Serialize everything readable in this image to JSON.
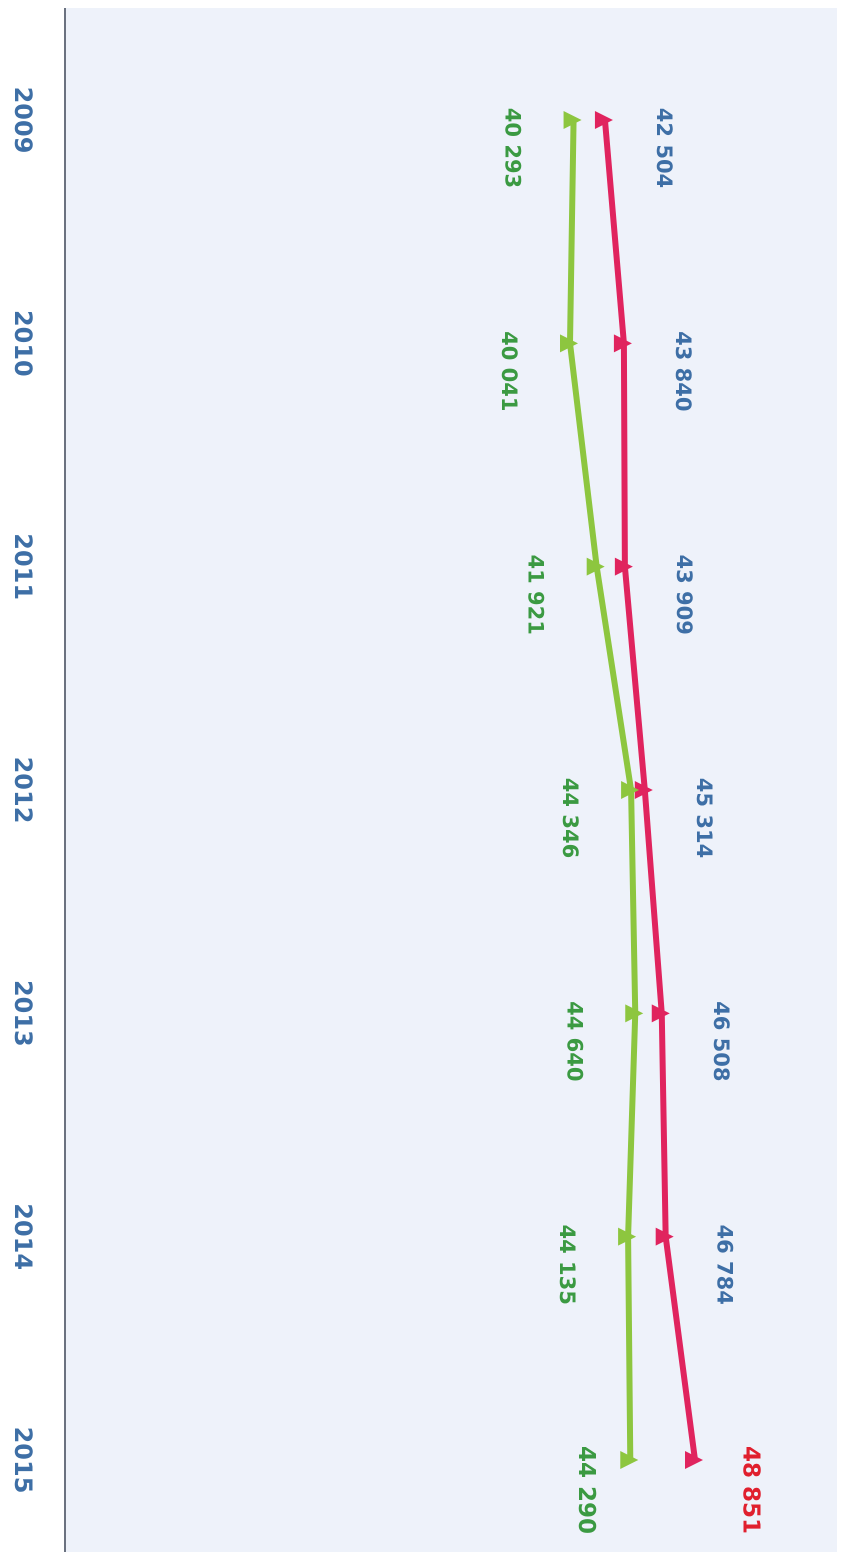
{
  "chart_data": {
    "type": "line",
    "categories": [
      "2009",
      "2010",
      "2011",
      "2012",
      "2013",
      "2014",
      "2015"
    ],
    "series": [
      {
        "color": "#e0245e",
        "values": [
          42504,
          43840,
          43909,
          45314,
          46508,
          46784,
          48851
        ],
        "value_labels": [
          "42 504",
          "43 840",
          "43 909",
          "45 314",
          "46 508",
          "46 784",
          "48 851"
        ]
      },
      {
        "color": "#8dc63f",
        "values": [
          40293,
          40041,
          41921,
          44346,
          44640,
          44135,
          44290
        ],
        "value_labels": [
          "40 293",
          "40 041",
          "41 921",
          "44 346",
          "44 640",
          "44 135",
          "44 290"
        ]
      }
    ]
  }
}
